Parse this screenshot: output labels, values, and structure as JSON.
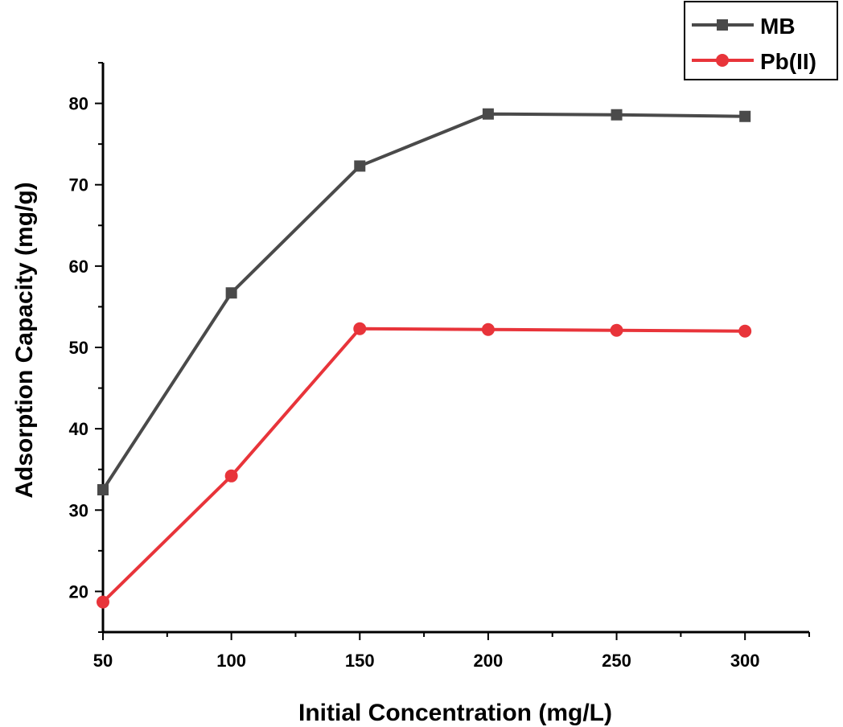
{
  "chart_data": {
    "type": "line",
    "title": "",
    "xlabel": "Initial Concentration (mg/L)",
    "ylabel": "Adsorption Capacity (mg/g)",
    "x": [
      50,
      100,
      150,
      200,
      250,
      300
    ],
    "xlim": [
      50,
      325
    ],
    "ylim": [
      15,
      85
    ],
    "x_ticks": [
      50,
      100,
      150,
      200,
      250,
      300
    ],
    "y_ticks": [
      20,
      30,
      40,
      50,
      60,
      70,
      80
    ],
    "x_tick_labels": [
      "50",
      "100",
      "150",
      "200",
      "250",
      "300"
    ],
    "y_tick_labels": [
      "20",
      "30",
      "40",
      "50",
      "60",
      "70",
      "80"
    ],
    "grid": false,
    "legend_position": "top-right",
    "series": [
      {
        "name": "MB",
        "marker": "square",
        "color": "#4a4a4a",
        "values": [
          32.5,
          56.7,
          72.3,
          78.7,
          78.6,
          78.4
        ]
      },
      {
        "name": "Pb(II)",
        "marker": "circle",
        "color": "#e8343a",
        "values": [
          18.7,
          34.2,
          52.3,
          52.2,
          52.1,
          52.0
        ]
      }
    ]
  }
}
